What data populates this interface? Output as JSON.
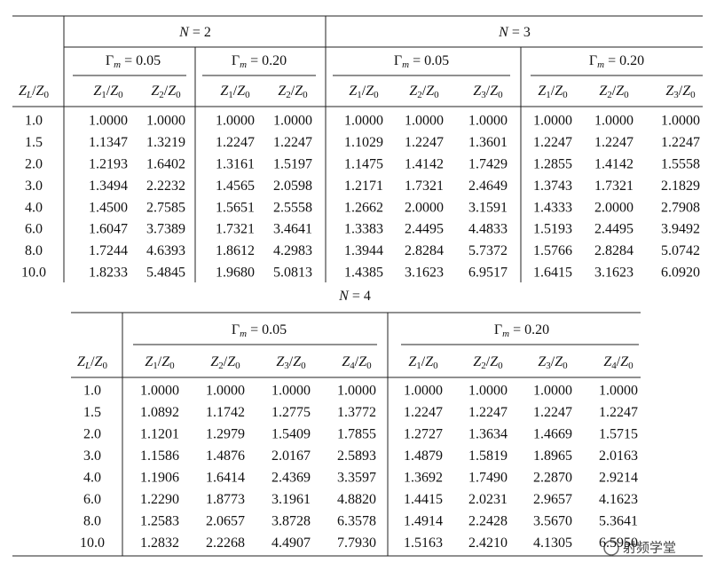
{
  "table1": {
    "row_header": "ZL/Z0",
    "groups": [
      {
        "label": "N = 2",
        "subgroups": [
          {
            "label": "Γm = 0.05",
            "columns": [
              "Z1/Z0",
              "Z2/Z0"
            ]
          },
          {
            "label": "Γm = 0.20",
            "columns": [
              "Z1/Z0",
              "Z2/Z0"
            ]
          }
        ]
      },
      {
        "label": "N = 3",
        "subgroups": [
          {
            "label": "Γm = 0.05",
            "columns": [
              "Z1/Z0",
              "Z2/Z0",
              "Z3/Z0"
            ]
          },
          {
            "label": "Γm = 0.20",
            "columns": [
              "Z1/Z0",
              "Z2/Z0",
              "Z3/Z0"
            ]
          }
        ]
      }
    ],
    "rows": [
      {
        "zl": "1.0",
        "values": [
          "1.0000",
          "1.0000",
          "1.0000",
          "1.0000",
          "1.0000",
          "1.0000",
          "1.0000",
          "1.0000",
          "1.0000",
          "1.0000"
        ]
      },
      {
        "zl": "1.5",
        "values": [
          "1.1347",
          "1.3219",
          "1.2247",
          "1.2247",
          "1.1029",
          "1.2247",
          "1.3601",
          "1.2247",
          "1.2247",
          "1.2247"
        ]
      },
      {
        "zl": "2.0",
        "values": [
          "1.2193",
          "1.6402",
          "1.3161",
          "1.5197",
          "1.1475",
          "1.4142",
          "1.7429",
          "1.2855",
          "1.4142",
          "1.5558"
        ]
      },
      {
        "zl": "3.0",
        "values": [
          "1.3494",
          "2.2232",
          "1.4565",
          "2.0598",
          "1.2171",
          "1.7321",
          "2.4649",
          "1.3743",
          "1.7321",
          "2.1829"
        ]
      },
      {
        "zl": "4.0",
        "values": [
          "1.4500",
          "2.7585",
          "1.5651",
          "2.5558",
          "1.2662",
          "2.0000",
          "3.1591",
          "1.4333",
          "2.0000",
          "2.7908"
        ]
      },
      {
        "zl": "6.0",
        "values": [
          "1.6047",
          "3.7389",
          "1.7321",
          "3.4641",
          "1.3383",
          "2.4495",
          "4.4833",
          "1.5193",
          "2.4495",
          "3.9492"
        ]
      },
      {
        "zl": "8.0",
        "values": [
          "1.7244",
          "4.6393",
          "1.8612",
          "4.2983",
          "1.3944",
          "2.8284",
          "5.7372",
          "1.5766",
          "2.8284",
          "5.0742"
        ]
      },
      {
        "zl": "10.0",
        "values": [
          "1.8233",
          "5.4845",
          "1.9680",
          "5.0813",
          "1.4385",
          "3.1623",
          "6.9517",
          "1.6415",
          "3.1623",
          "6.0920"
        ]
      }
    ]
  },
  "table2": {
    "row_header": "ZL/Z0",
    "groups": [
      {
        "label": "N = 4",
        "subgroups": [
          {
            "label": "Γm = 0.05",
            "columns": [
              "Z1/Z0",
              "Z2/Z0",
              "Z3/Z0",
              "Z4/Z0"
            ]
          },
          {
            "label": "Γm = 0.20",
            "columns": [
              "Z1/Z0",
              "Z2/Z0",
              "Z3/Z0",
              "Z4/Z0"
            ]
          }
        ]
      }
    ],
    "rows": [
      {
        "zl": "1.0",
        "values": [
          "1.0000",
          "1.0000",
          "1.0000",
          "1.0000",
          "1.0000",
          "1.0000",
          "1.0000",
          "1.0000"
        ]
      },
      {
        "zl": "1.5",
        "values": [
          "1.0892",
          "1.1742",
          "1.2775",
          "1.3772",
          "1.2247",
          "1.2247",
          "1.2247",
          "1.2247"
        ]
      },
      {
        "zl": "2.0",
        "values": [
          "1.1201",
          "1.2979",
          "1.5409",
          "1.7855",
          "1.2727",
          "1.3634",
          "1.4669",
          "1.5715"
        ]
      },
      {
        "zl": "3.0",
        "values": [
          "1.1586",
          "1.4876",
          "2.0167",
          "2.5893",
          "1.4879",
          "1.5819",
          "1.8965",
          "2.0163"
        ]
      },
      {
        "zl": "4.0",
        "values": [
          "1.1906",
          "1.6414",
          "2.4369",
          "3.3597",
          "1.3692",
          "1.7490",
          "2.2870",
          "2.9214"
        ]
      },
      {
        "zl": "6.0",
        "values": [
          "1.2290",
          "1.8773",
          "3.1961",
          "4.8820",
          "1.4415",
          "2.0231",
          "2.9657",
          "4.1623"
        ]
      },
      {
        "zl": "8.0",
        "values": [
          "1.2583",
          "2.0657",
          "3.8728",
          "6.3578",
          "1.4914",
          "2.2428",
          "3.5670",
          "5.3641"
        ]
      },
      {
        "zl": "10.0",
        "values": [
          "1.2832",
          "2.2268",
          "4.4907",
          "7.7930",
          "1.5163",
          "2.4210",
          "4.1305",
          "6.5950"
        ]
      }
    ]
  },
  "watermark": "射频学堂"
}
